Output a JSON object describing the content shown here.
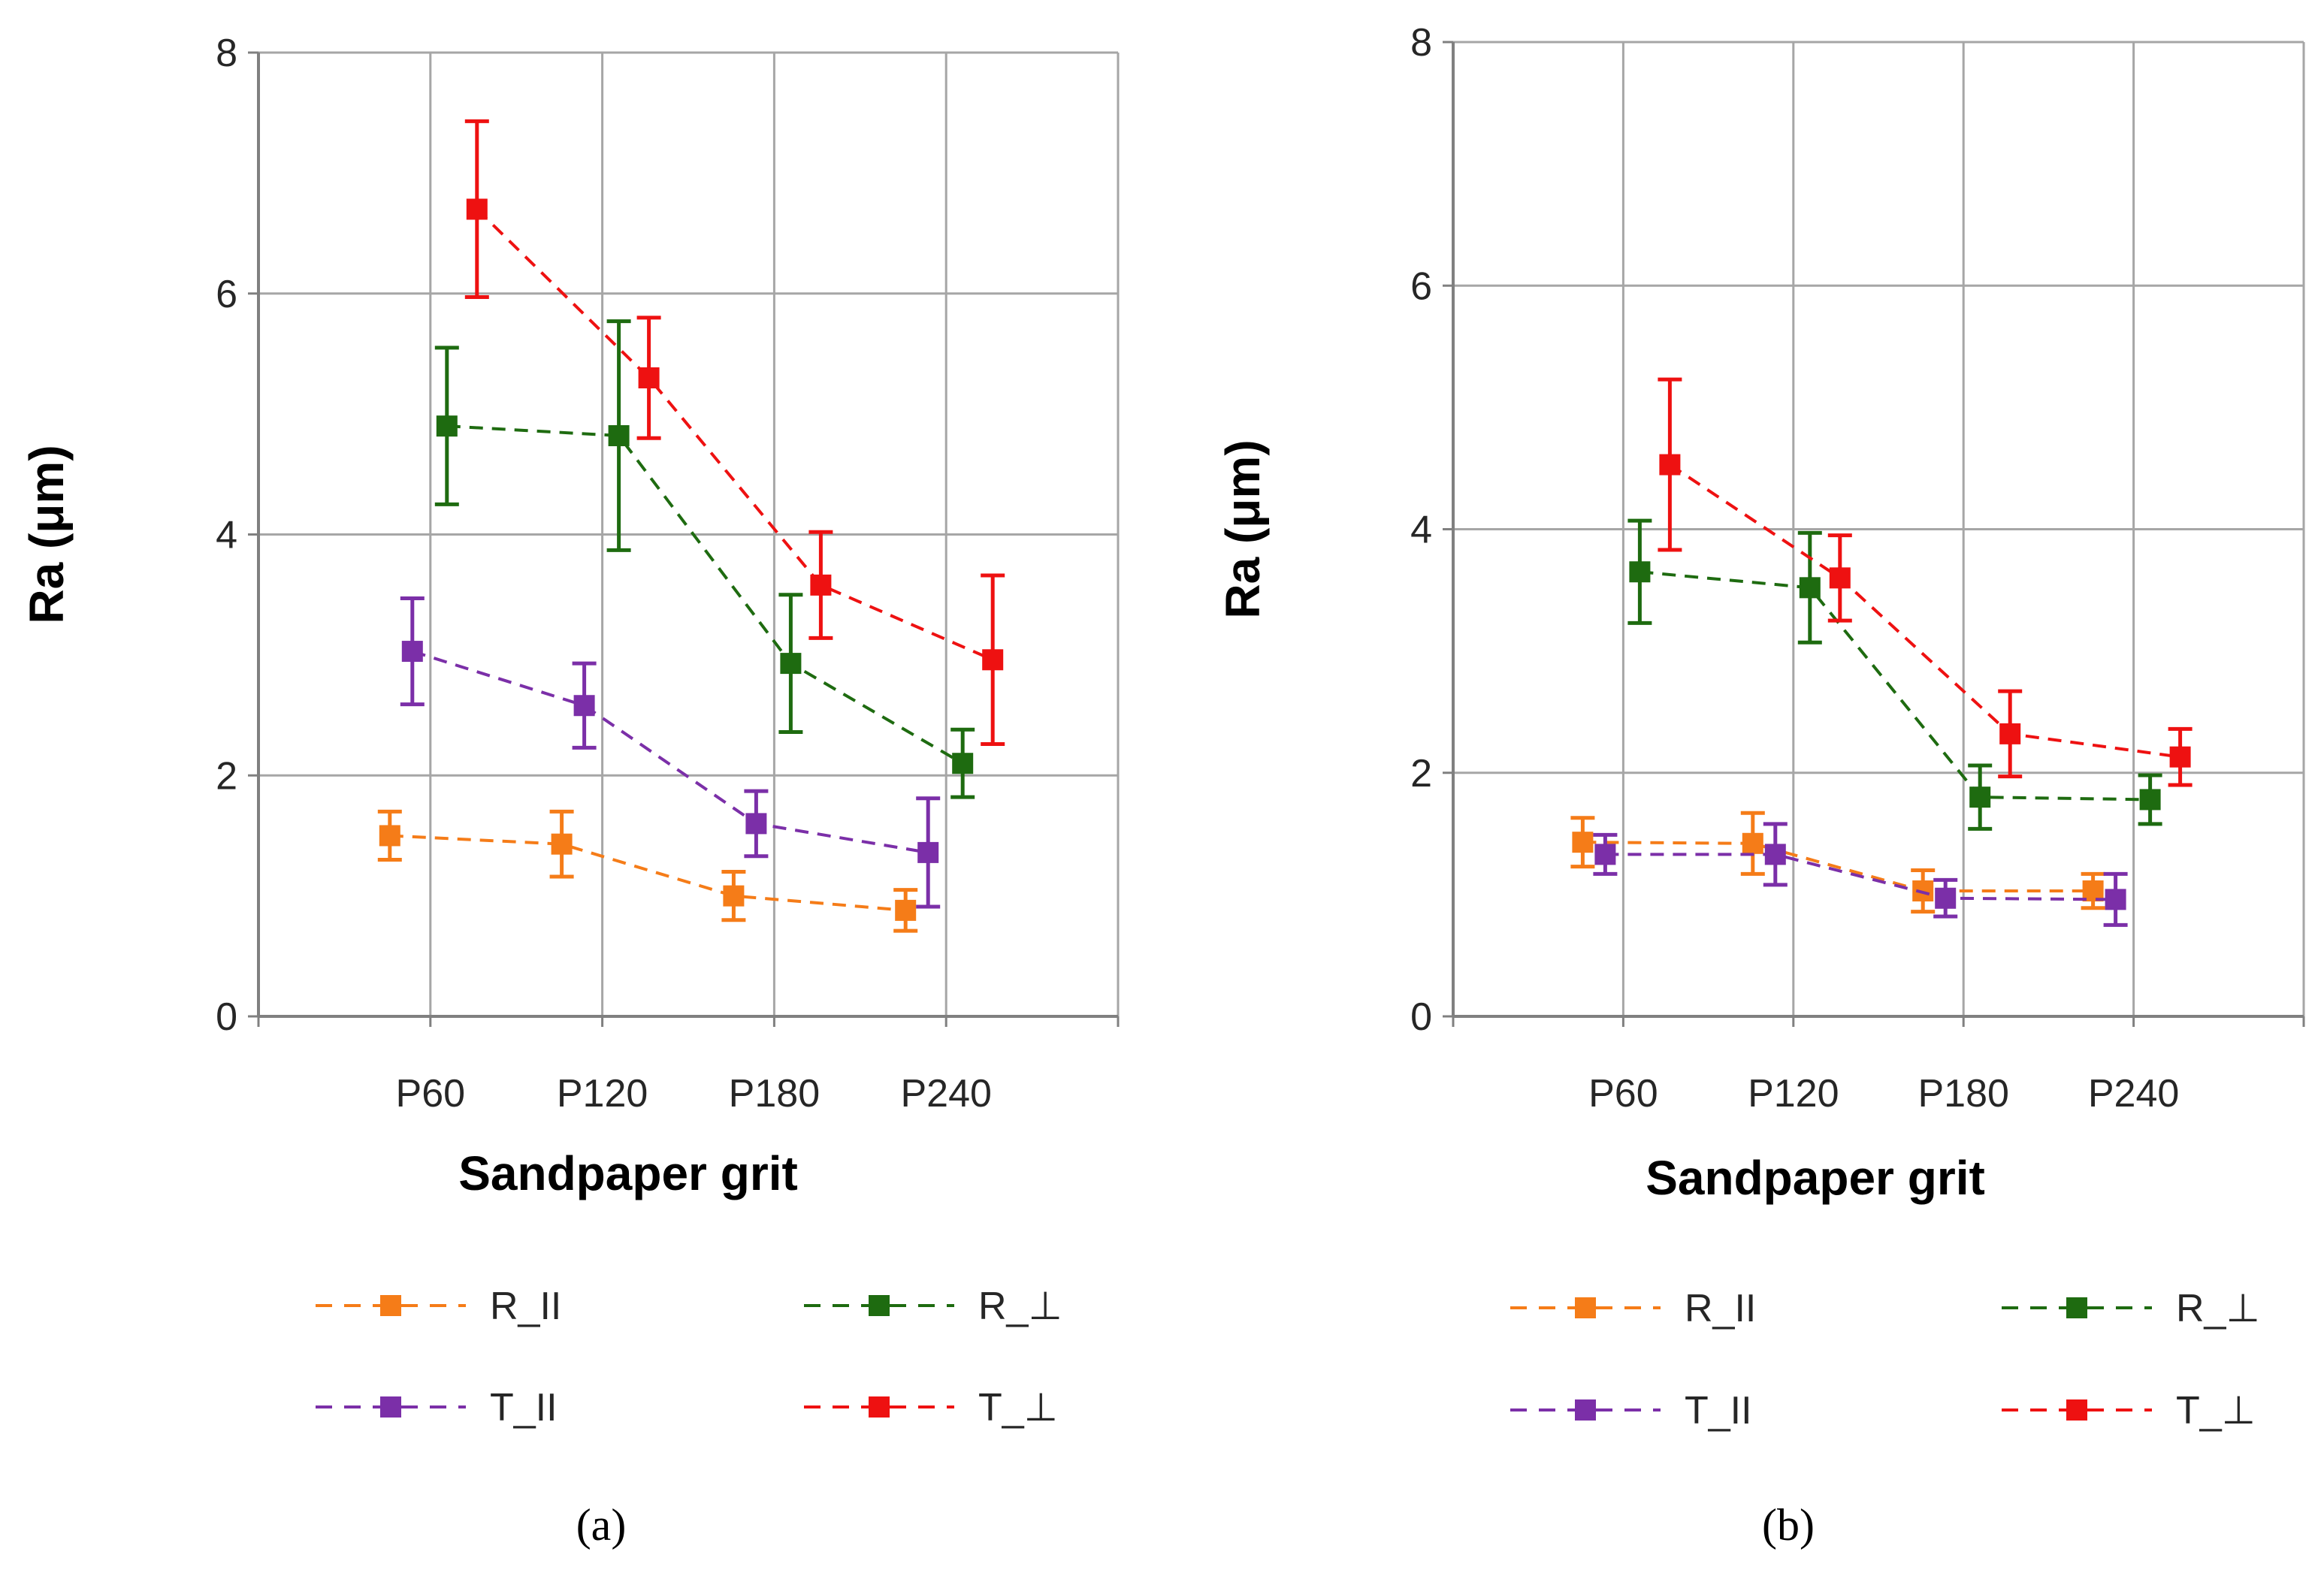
{
  "chart_data": [
    {
      "type": "line",
      "panel_label": "(a)",
      "xlabel": "Sandpaper grit",
      "ylabel": "Ra (μm)",
      "categories": [
        "P60",
        "P120",
        "P180",
        "P240"
      ],
      "ylim": [
        0,
        8
      ],
      "yticks": [
        "0",
        "2",
        "4",
        "6",
        "8"
      ],
      "grid": true,
      "error_bars": true,
      "legend_position": "bottom",
      "series": [
        {
          "key": "R_par",
          "name": "R_II",
          "color": "#F57C18",
          "values": [
            1.5,
            1.43,
            1.0,
            0.88
          ],
          "errors": [
            0.2,
            0.27,
            0.2,
            0.17
          ]
        },
        {
          "key": "R_perp",
          "name": "R_⊥",
          "color": "#1E6B10",
          "values": [
            4.9,
            4.82,
            2.93,
            2.1
          ],
          "errors": [
            0.65,
            0.95,
            0.57,
            0.28
          ]
        },
        {
          "key": "T_par",
          "name": "T_II",
          "color": "#7B2FA8",
          "values": [
            3.03,
            2.58,
            1.6,
            1.36
          ],
          "errors": [
            0.44,
            0.35,
            0.27,
            0.45
          ]
        },
        {
          "key": "T_perp",
          "name": "T_⊥",
          "color": "#EE1111",
          "values": [
            6.7,
            5.3,
            3.58,
            2.96
          ],
          "errors": [
            0.73,
            0.5,
            0.44,
            0.7
          ]
        }
      ]
    },
    {
      "type": "line",
      "panel_label": "(b)",
      "xlabel": "Sandpaper grit",
      "ylabel": "Ra (μm)",
      "categories": [
        "P60",
        "P120",
        "P180",
        "P240"
      ],
      "ylim": [
        0,
        8
      ],
      "yticks": [
        "0",
        "2",
        "4",
        "6",
        "8"
      ],
      "grid": true,
      "error_bars": true,
      "legend_position": "bottom",
      "series": [
        {
          "key": "R_par",
          "name": "R_II",
          "color": "#F57C18",
          "values": [
            1.43,
            1.42,
            1.03,
            1.03
          ],
          "errors": [
            0.2,
            0.25,
            0.17,
            0.14
          ]
        },
        {
          "key": "R_perp",
          "name": "R_⊥",
          "color": "#1E6B10",
          "values": [
            3.65,
            3.52,
            1.8,
            1.78
          ],
          "errors": [
            0.42,
            0.45,
            0.26,
            0.2
          ]
        },
        {
          "key": "T_par",
          "name": "T_II",
          "color": "#7B2FA8",
          "values": [
            1.33,
            1.33,
            0.97,
            0.96
          ],
          "errors": [
            0.16,
            0.25,
            0.15,
            0.21
          ]
        },
        {
          "key": "T_perp",
          "name": "T_⊥",
          "color": "#EE1111",
          "values": [
            4.53,
            3.6,
            2.32,
            2.13
          ],
          "errors": [
            0.7,
            0.35,
            0.35,
            0.23
          ]
        }
      ]
    }
  ]
}
